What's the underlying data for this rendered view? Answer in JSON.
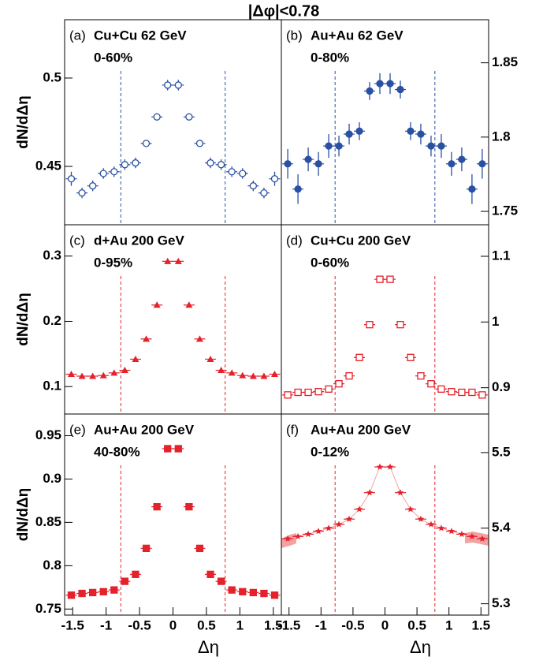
{
  "title": "|Δφ|<0.78",
  "chart_data": [
    {
      "type": "scatter",
      "panel": "(a)",
      "title": "Cu+Cu 62 GeV",
      "subtitle": "0-60%",
      "ylabel": "dN/dΔη",
      "yaxis": "left",
      "marker": "circle-open",
      "vlines": [
        -0.78,
        0.78
      ],
      "xlim": [
        -1.62,
        1.62
      ],
      "ylim": [
        0.417,
        0.533
      ],
      "yticks": [
        0.45,
        0.5
      ],
      "x": [
        -1.52,
        -1.36,
        -1.2,
        -1.04,
        -0.88,
        -0.72,
        -0.56,
        -0.4,
        -0.24,
        -0.08,
        0.08,
        0.24,
        0.4,
        0.56,
        0.72,
        0.88,
        1.04,
        1.2,
        1.36,
        1.52
      ],
      "series": [
        {
          "color": "#2a50a3",
          "values": [
            0.443,
            0.435,
            0.439,
            0.446,
            0.447,
            0.451,
            0.452,
            0.463,
            0.478,
            0.496,
            0.496,
            0.478,
            0.463,
            0.452,
            0.451,
            0.447,
            0.446,
            0.439,
            0.435,
            0.443
          ],
          "errors": [
            0.004,
            0.003,
            0.003,
            0.003,
            0.003,
            0.003,
            0.003,
            0.002,
            0.002,
            0.003,
            0.003,
            0.002,
            0.002,
            0.003,
            0.003,
            0.003,
            0.003,
            0.003,
            0.003,
            0.004
          ]
        }
      ]
    },
    {
      "type": "scatter",
      "panel": "(b)",
      "title": "Au+Au 62 GeV",
      "subtitle": "0-80%",
      "yaxis": "right",
      "marker": "circle",
      "vlines": [
        -0.78,
        0.78
      ],
      "xlim": [
        -1.62,
        1.62
      ],
      "ylim": [
        1.741,
        1.879
      ],
      "yticks": [
        1.75,
        1.8,
        1.85
      ],
      "x": [
        -1.52,
        -1.36,
        -1.2,
        -1.04,
        -0.88,
        -0.72,
        -0.56,
        -0.4,
        -0.24,
        -0.08,
        0.08,
        0.24,
        0.4,
        0.56,
        0.72,
        0.88,
        1.04,
        1.2,
        1.36,
        1.52
      ],
      "series": [
        {
          "color": "#2a50a3",
          "values": [
            1.782,
            1.765,
            1.785,
            1.782,
            1.794,
            1.794,
            1.802,
            1.804,
            1.831,
            1.836,
            1.836,
            1.832,
            1.804,
            1.802,
            1.794,
            1.794,
            1.782,
            1.785,
            1.765,
            1.782
          ],
          "errors": [
            0.01,
            0.01,
            0.008,
            0.008,
            0.008,
            0.007,
            0.007,
            0.006,
            0.006,
            0.007,
            0.007,
            0.006,
            0.006,
            0.007,
            0.007,
            0.008,
            0.008,
            0.008,
            0.01,
            0.01
          ]
        }
      ]
    },
    {
      "type": "scatter",
      "panel": "(c)",
      "title": "d+Au 200 GeV",
      "subtitle": "0-95%",
      "ylabel": "dN/dΔη",
      "yaxis": "left",
      "marker": "triangle",
      "vlines": [
        -0.78,
        0.78
      ],
      "xlim": [
        -1.62,
        1.62
      ],
      "ylim": [
        0.058,
        0.348
      ],
      "yticks": [
        0.1,
        0.2,
        0.3
      ],
      "x": [
        -1.52,
        -1.36,
        -1.2,
        -1.04,
        -0.88,
        -0.72,
        -0.56,
        -0.4,
        -0.24,
        -0.08,
        0.08,
        0.24,
        0.4,
        0.56,
        0.72,
        0.88,
        1.04,
        1.2,
        1.36,
        1.52
      ],
      "series": [
        {
          "color": "#e3222b",
          "values": [
            0.119,
            0.116,
            0.116,
            0.117,
            0.121,
            0.125,
            0.142,
            0.173,
            0.225,
            0.292,
            0.292,
            0.225,
            0.173,
            0.142,
            0.125,
            0.121,
            0.117,
            0.116,
            0.116,
            0.119
          ]
        }
      ]
    },
    {
      "type": "scatter",
      "panel": "(d)",
      "title": "Cu+Cu 200 GeV",
      "subtitle": "0-60%",
      "yaxis": "right",
      "marker": "square-open",
      "vlines": [
        -0.78,
        0.78
      ],
      "xlim": [
        -1.62,
        1.62
      ],
      "ylim": [
        0.86,
        1.148
      ],
      "yticks": [
        0.9,
        1,
        1.1
      ],
      "x": [
        -1.52,
        -1.36,
        -1.2,
        -1.04,
        -0.88,
        -0.72,
        -0.56,
        -0.4,
        -0.24,
        -0.08,
        0.08,
        0.24,
        0.4,
        0.56,
        0.72,
        0.88,
        1.04,
        1.2,
        1.36,
        1.52
      ],
      "series": [
        {
          "color": "#e3222b",
          "values": [
            0.889,
            0.893,
            0.893,
            0.894,
            0.898,
            0.906,
            0.918,
            0.946,
            0.996,
            1.065,
            1.065,
            0.996,
            0.946,
            0.918,
            0.906,
            0.898,
            0.894,
            0.893,
            0.893,
            0.889
          ]
        }
      ]
    },
    {
      "type": "scatter",
      "panel": "(e)",
      "title": "Au+Au 200 GeV",
      "subtitle": "40-80%",
      "ylabel": "dN/dΔη",
      "xlabel": "Δη",
      "yaxis": "left",
      "marker": "square",
      "vlines": [
        -0.78,
        0.78
      ],
      "xlim": [
        -1.62,
        1.62
      ],
      "ylim": [
        0.743,
        0.975
      ],
      "yticks": [
        0.75,
        0.8,
        0.85,
        0.9,
        0.95
      ],
      "xticks": [
        -1.5,
        -1,
        -0.5,
        0,
        0.5,
        1,
        1.5
      ],
      "x": [
        -1.52,
        -1.36,
        -1.2,
        -1.04,
        -0.88,
        -0.72,
        -0.56,
        -0.4,
        -0.24,
        -0.08,
        0.08,
        0.24,
        0.4,
        0.56,
        0.72,
        0.88,
        1.04,
        1.2,
        1.36,
        1.52
      ],
      "series": [
        {
          "color": "#e3222b",
          "values": [
            0.766,
            0.768,
            0.769,
            0.77,
            0.772,
            0.782,
            0.79,
            0.82,
            0.868,
            0.935,
            0.935,
            0.868,
            0.82,
            0.79,
            0.782,
            0.772,
            0.77,
            0.769,
            0.768,
            0.766
          ]
        }
      ]
    },
    {
      "type": "scatter",
      "panel": "(f)",
      "title": "Au+Au 200 GeV",
      "subtitle": "0-12%",
      "xlabel": "Δη",
      "yaxis": "right",
      "marker": "star",
      "line": true,
      "vlines": [
        -0.78,
        0.78
      ],
      "xlim": [
        -1.62,
        1.62
      ],
      "ylim": [
        5.285,
        5.551
      ],
      "yticks": [
        5.3,
        5.4,
        5.5
      ],
      "xticks": [
        -1.5,
        -1,
        -0.5,
        0,
        0.5,
        1,
        1.5
      ],
      "x": [
        -1.52,
        -1.36,
        -1.2,
        -1.04,
        -0.88,
        -0.72,
        -0.56,
        -0.4,
        -0.24,
        -0.08,
        0.08,
        0.24,
        0.4,
        0.56,
        0.72,
        0.88,
        1.04,
        1.2,
        1.36,
        1.52
      ],
      "series": [
        {
          "color": "#e3222b",
          "values": [
            5.386,
            5.389,
            5.392,
            5.396,
            5.4,
            5.405,
            5.412,
            5.425,
            5.447,
            5.481,
            5.481,
            5.447,
            5.425,
            5.412,
            5.405,
            5.4,
            5.396,
            5.392,
            5.389,
            5.386
          ]
        }
      ]
    }
  ]
}
